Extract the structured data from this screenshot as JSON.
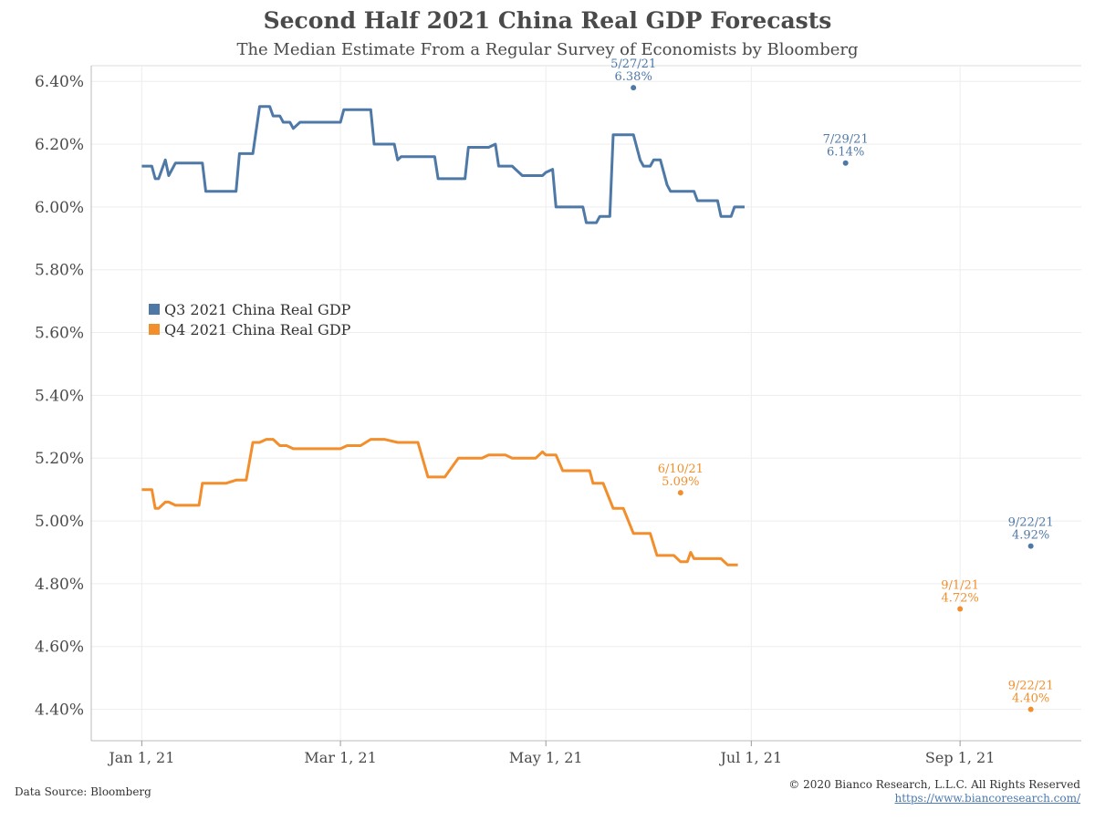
{
  "title": "Second Half 2021 China Real GDP Forecasts",
  "subtitle": "The Median Estimate From a Regular Survey of Economists by Bloomberg",
  "footer": {
    "source": "Data Source: Bloomberg",
    "copyright": "© 2020 Bianco Research, L.L.C. All Rights Reserved",
    "url": "https://www.biancoresearch.com/"
  },
  "colors": {
    "q3": "#4e79a7",
    "q4": "#f28e2b",
    "grid": "#e8e8e8",
    "axis": "#999999",
    "text": "#4a4a4a"
  },
  "chart_data": {
    "type": "line",
    "title": "Second Half 2021 China Real GDP Forecasts",
    "xlabel": "",
    "ylabel": "",
    "ylim": [
      4.3,
      6.45
    ],
    "yticks": [
      4.4,
      4.6,
      4.8,
      5.0,
      5.2,
      5.4,
      5.6,
      5.8,
      6.0,
      6.2,
      6.4
    ],
    "ytick_labels": [
      "4.40%",
      "4.60%",
      "4.80%",
      "5.00%",
      "5.20%",
      "5.40%",
      "5.60%",
      "5.80%",
      "6.00%",
      "6.20%",
      "6.40%"
    ],
    "xlim": [
      "2020-12-17",
      "2021-10-07"
    ],
    "xticks": [
      "2021-01-01",
      "2021-03-01",
      "2021-05-01",
      "2021-07-01",
      "2021-09-01"
    ],
    "xtick_labels": [
      "Jan 1, 21",
      "Mar 1, 21",
      "May 1, 21",
      "Jul 1, 21",
      "Sep 1, 21"
    ],
    "grid": true,
    "legend_placement": "middle-left",
    "series": [
      {
        "name": "Q3 2021 China Real GDP",
        "color": "#4e79a7",
        "points": [
          [
            "2021-01-01",
            6.13
          ],
          [
            "2021-01-04",
            6.13
          ],
          [
            "2021-01-05",
            6.09
          ],
          [
            "2021-01-06",
            6.09
          ],
          [
            "2021-01-08",
            6.15
          ],
          [
            "2021-01-09",
            6.1
          ],
          [
            "2021-01-11",
            6.14
          ],
          [
            "2021-01-19",
            6.14
          ],
          [
            "2021-01-20",
            6.05
          ],
          [
            "2021-01-29",
            6.05
          ],
          [
            "2021-01-30",
            6.17
          ],
          [
            "2021-02-03",
            6.17
          ],
          [
            "2021-02-05",
            6.32
          ],
          [
            "2021-02-08",
            6.32
          ],
          [
            "2021-02-09",
            6.29
          ],
          [
            "2021-02-11",
            6.29
          ],
          [
            "2021-02-12",
            6.27
          ],
          [
            "2021-02-14",
            6.27
          ],
          [
            "2021-02-15",
            6.25
          ],
          [
            "2021-02-17",
            6.27
          ],
          [
            "2021-02-22",
            6.27
          ],
          [
            "2021-03-01",
            6.27
          ],
          [
            "2021-03-02",
            6.31
          ],
          [
            "2021-03-10",
            6.31
          ],
          [
            "2021-03-11",
            6.2
          ],
          [
            "2021-03-17",
            6.2
          ],
          [
            "2021-03-18",
            6.15
          ],
          [
            "2021-03-19",
            6.16
          ],
          [
            "2021-03-24",
            6.16
          ],
          [
            "2021-03-29",
            6.16
          ],
          [
            "2021-03-30",
            6.09
          ],
          [
            "2021-04-07",
            6.09
          ],
          [
            "2021-04-08",
            6.19
          ],
          [
            "2021-04-14",
            6.19
          ],
          [
            "2021-04-16",
            6.2
          ],
          [
            "2021-04-17",
            6.13
          ],
          [
            "2021-04-21",
            6.13
          ],
          [
            "2021-04-22",
            6.12
          ],
          [
            "2021-04-24",
            6.1
          ],
          [
            "2021-04-30",
            6.1
          ],
          [
            "2021-05-01",
            6.11
          ],
          [
            "2021-05-03",
            6.12
          ],
          [
            "2021-05-04",
            6.0
          ],
          [
            "2021-05-12",
            6.0
          ],
          [
            "2021-05-13",
            5.95
          ],
          [
            "2021-05-16",
            5.95
          ],
          [
            "2021-05-17",
            5.97
          ],
          [
            "2021-05-20",
            5.97
          ],
          [
            "2021-05-21",
            6.23
          ],
          [
            "2021-05-27",
            6.23
          ],
          [
            "2021-05-29",
            6.15
          ],
          [
            "2021-05-30",
            6.13
          ],
          [
            "2021-06-01",
            6.13
          ],
          [
            "2021-06-02",
            6.15
          ],
          [
            "2021-06-04",
            6.15
          ],
          [
            "2021-06-06",
            6.07
          ],
          [
            "2021-06-07",
            6.05
          ],
          [
            "2021-06-14",
            6.05
          ],
          [
            "2021-06-15",
            6.02
          ],
          [
            "2021-06-21",
            6.02
          ],
          [
            "2021-06-22",
            5.97
          ],
          [
            "2021-06-25",
            5.97
          ],
          [
            "2021-06-26",
            6.0
          ],
          [
            "2021-06-29",
            6.0
          ],
          [
            "2021-05-27",
            6.38
          ]
        ]
      },
      {
        "name": "Q4 2021 China Real GDP",
        "color": "#f28e2b",
        "points": [
          [
            "2021-01-01",
            5.1
          ],
          [
            "2021-01-04",
            5.1
          ],
          [
            "2021-01-05",
            5.04
          ],
          [
            "2021-01-06",
            5.04
          ],
          [
            "2021-01-08",
            5.06
          ],
          [
            "2021-01-09",
            5.06
          ],
          [
            "2021-01-11",
            5.05
          ],
          [
            "2021-01-18",
            5.05
          ],
          [
            "2021-01-19",
            5.12
          ],
          [
            "2021-01-26",
            5.12
          ],
          [
            "2021-01-29",
            5.13
          ],
          [
            "2021-02-01",
            5.13
          ],
          [
            "2021-02-03",
            5.25
          ],
          [
            "2021-02-05",
            5.25
          ],
          [
            "2021-02-07",
            5.26
          ],
          [
            "2021-02-09",
            5.26
          ],
          [
            "2021-02-11",
            5.24
          ],
          [
            "2021-02-13",
            5.24
          ],
          [
            "2021-02-15",
            5.23
          ],
          [
            "2021-03-01",
            5.23
          ],
          [
            "2021-03-03",
            5.24
          ],
          [
            "2021-03-07",
            5.24
          ],
          [
            "2021-03-10",
            5.26
          ],
          [
            "2021-03-14",
            5.26
          ],
          [
            "2021-03-18",
            5.25
          ],
          [
            "2021-03-24",
            5.25
          ],
          [
            "2021-03-27",
            5.14
          ],
          [
            "2021-04-01",
            5.14
          ],
          [
            "2021-04-05",
            5.2
          ],
          [
            "2021-04-12",
            5.2
          ],
          [
            "2021-04-14",
            5.21
          ],
          [
            "2021-04-19",
            5.21
          ],
          [
            "2021-04-21",
            5.2
          ],
          [
            "2021-04-28",
            5.2
          ],
          [
            "2021-04-30",
            5.22
          ],
          [
            "2021-05-01",
            5.21
          ],
          [
            "2021-05-04",
            5.21
          ],
          [
            "2021-05-06",
            5.16
          ],
          [
            "2021-05-14",
            5.16
          ],
          [
            "2021-05-15",
            5.12
          ],
          [
            "2021-05-18",
            5.12
          ],
          [
            "2021-05-21",
            5.04
          ],
          [
            "2021-05-24",
            5.04
          ],
          [
            "2021-05-27",
            4.96
          ],
          [
            "2021-06-01",
            4.96
          ],
          [
            "2021-06-03",
            4.89
          ],
          [
            "2021-06-08",
            4.89
          ],
          [
            "2021-06-10",
            4.87
          ],
          [
            "2021-06-12",
            4.87
          ],
          [
            "2021-06-13",
            4.9
          ],
          [
            "2021-06-14",
            4.88
          ],
          [
            "2021-06-22",
            4.88
          ],
          [
            "2021-06-24",
            4.86
          ],
          [
            "2021-06-27",
            4.86
          ],
          [
            "2021-06-10",
            5.09
          ]
        ]
      }
    ],
    "annotations": [
      {
        "series": "Q3 2021 China Real GDP",
        "date": "5/27/21",
        "value": "6.38%",
        "x": "2021-05-27",
        "y": 6.38
      },
      {
        "series": "Q3 2021 China Real GDP",
        "date": "7/29/21",
        "value": "6.14%",
        "x": "2021-07-29",
        "y": 6.14
      },
      {
        "series": "Q3 2021 China Real GDP",
        "date": "9/22/21",
        "value": "4.92%",
        "x": "2021-09-22",
        "y": 4.92
      },
      {
        "series": "Q4 2021 China Real GDP",
        "date": "6/10/21",
        "value": "5.09%",
        "x": "2021-06-10",
        "y": 5.09
      },
      {
        "series": "Q4 2021 China Real GDP",
        "date": "9/1/21",
        "value": "4.72%",
        "x": "2021-09-01",
        "y": 4.72
      },
      {
        "series": "Q4 2021 China Real GDP",
        "date": "9/22/21",
        "value": "4.40%",
        "x": "2021-09-22",
        "y": 4.4
      }
    ]
  }
}
